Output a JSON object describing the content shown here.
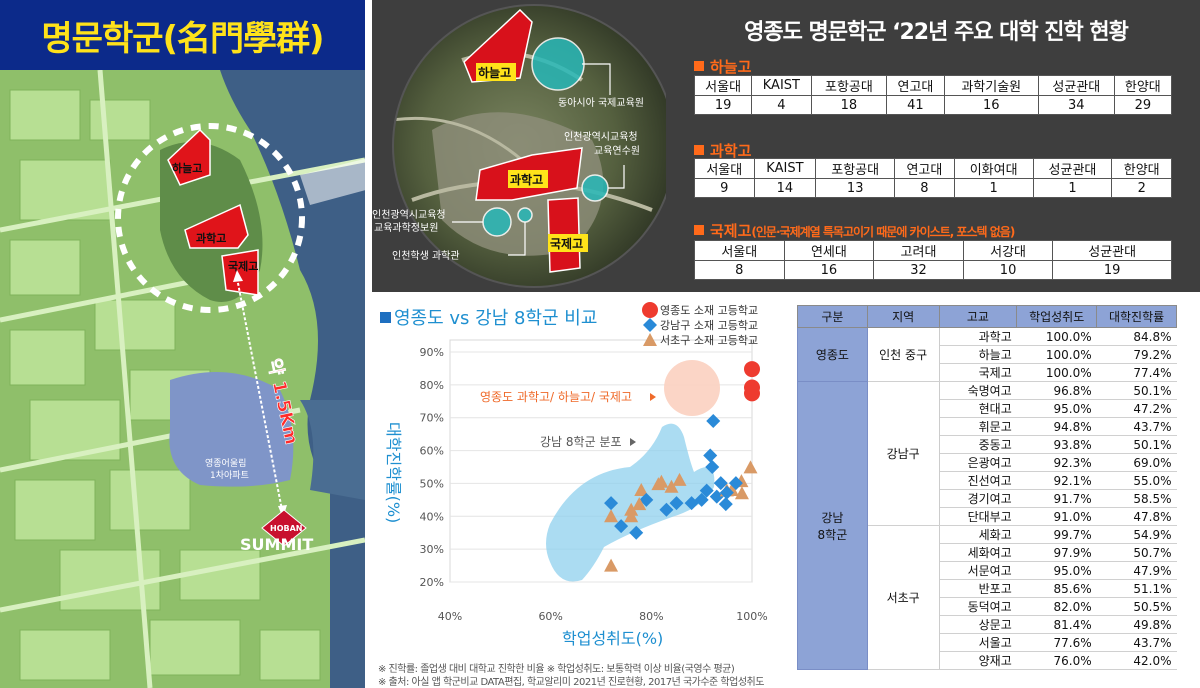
{
  "map": {
    "title": "명문학군(名門學群)",
    "schools": {
      "haneul": "하늘고",
      "gwahak": "과학고",
      "gukje": "국제고"
    },
    "distance_label": "약 1.5Km",
    "apartment_label_1": "영종어울림",
    "apartment_label_2": "1차아파트",
    "brand_small": "HOBAN",
    "brand_big": "SUMMIT"
  },
  "aerial": {
    "haneul": "하늘고",
    "gwahak": "과학고",
    "gukje": "국제고",
    "dongasia": "동아시아 국제교육원",
    "yeonsuwon_1": "인천광역시교육청",
    "yeonsuwon_2": "교육연수원",
    "jeongbowon_1": "인천광역시교육청",
    "jeongbowon_2": "교육과학정보원",
    "gwahakgwan": "인천학생 과학관"
  },
  "stats": {
    "title": "영종도 명문학군 ‘22년 주요 대학 진학 현황",
    "haneul": {
      "label": "하늘고",
      "headers": [
        "서울대",
        "KAIST",
        "포항공대",
        "연고대",
        "과학기술원",
        "성균관대",
        "한양대"
      ],
      "values": [
        "19",
        "4",
        "18",
        "41",
        "16",
        "34",
        "29"
      ]
    },
    "gwahak": {
      "label": "과학고",
      "headers": [
        "서울대",
        "KAIST",
        "포항공대",
        "연고대",
        "이화여대",
        "성균관대",
        "한양대"
      ],
      "values": [
        "9",
        "14",
        "13",
        "8",
        "1",
        "1",
        "2"
      ]
    },
    "gukje": {
      "label": "국제고",
      "note": "(인문·국제계열 특목고이기 때문에 카이스트, 포스텍 없음)",
      "headers": [
        "서울대",
        "연세대",
        "고려대",
        "서강대",
        "성균관대"
      ],
      "values": [
        "8",
        "16",
        "32",
        "10",
        "19"
      ]
    }
  },
  "chart_data": {
    "type": "scatter",
    "title": "영종도 vs 강남 8학군 비교",
    "xlabel": "학업성취도(%)",
    "ylabel": "대학진학률(%)",
    "xlim": [
      40,
      100
    ],
    "ylim": [
      20,
      90
    ],
    "x_ticks": [
      "40%",
      "60%",
      "80%",
      "100%"
    ],
    "y_ticks": [
      "20%",
      "30%",
      "40%",
      "50%",
      "60%",
      "70%",
      "80%",
      "90%"
    ],
    "grid": "horizontal",
    "legend_position": "top-right",
    "annotation_yeongjong": "영종도 과학고/ 하늘고/ 국제고",
    "annotation_gangnam": "강남 8학군 분포",
    "series": [
      {
        "name": "영종도 소재 고등학교",
        "color": "#ee3b2f",
        "marker": "circle",
        "x": [
          100.0,
          100.0,
          100.0
        ],
        "y": [
          84.8,
          79.2,
          77.4
        ]
      },
      {
        "name": "강남구 소재 고등학교",
        "color": "#2a8ad8",
        "marker": "diamond",
        "x": [
          96.8,
          95.0,
          94.8,
          93.8,
          92.3,
          92.1,
          91.7,
          91.0
        ],
        "y": [
          50.1,
          47.2,
          43.7,
          50.1,
          69.0,
          55.0,
          58.5,
          47.8
        ]
      },
      {
        "name": "서초구 소재 고등학교",
        "color": "#d99a66",
        "marker": "triangle",
        "x": [
          99.7,
          97.9,
          95.0,
          85.6,
          82.0,
          81.4,
          77.6,
          76.0
        ],
        "y": [
          54.9,
          50.7,
          47.9,
          51.1,
          50.5,
          49.8,
          43.7,
          42.0
        ]
      }
    ]
  },
  "chart_extra_points": {
    "gangnam": [
      {
        "x": 72,
        "y": 44
      },
      {
        "x": 74,
        "y": 37
      },
      {
        "x": 77,
        "y": 35
      },
      {
        "x": 79,
        "y": 45
      },
      {
        "x": 83,
        "y": 42
      },
      {
        "x": 85,
        "y": 44
      },
      {
        "x": 88,
        "y": 44
      },
      {
        "x": 90,
        "y": 45
      },
      {
        "x": 93,
        "y": 46
      }
    ],
    "seocho": [
      {
        "x": 72,
        "y": 25
      },
      {
        "x": 72,
        "y": 40
      },
      {
        "x": 76,
        "y": 40
      },
      {
        "x": 78,
        "y": 48
      },
      {
        "x": 84,
        "y": 49
      },
      {
        "x": 96,
        "y": 48
      },
      {
        "x": 98,
        "y": 47
      }
    ]
  },
  "footnotes": {
    "line1": "※ 진학률: 졸업생 대비 대학교 진학한 비율  ※ 학업성취도: 보통학력 이상 비율(국영수 평균)",
    "line2": "※ 출처: 아실 앱 학군비교 DATA편집, 학교알리미 2021년 진로현황, 2017년 국가수준 학업성취도"
  },
  "perf_table": {
    "headers": [
      "구분",
      "지역",
      "고교",
      "학업성취도",
      "대학진학률"
    ],
    "yeongjong": {
      "group": "영종도",
      "region": "인천 중구",
      "rows": [
        [
          "과학고",
          "100.0%",
          "84.8%"
        ],
        [
          "하늘고",
          "100.0%",
          "79.2%"
        ],
        [
          "국제고",
          "100.0%",
          "77.4%"
        ]
      ]
    },
    "gangnam": {
      "group_1": "강남",
      "group_2": "8학군",
      "gangnam_gu": {
        "region": "강남구",
        "rows": [
          [
            "숙명여고",
            "96.8%",
            "50.1%"
          ],
          [
            "현대고",
            "95.0%",
            "47.2%"
          ],
          [
            "휘문고",
            "94.8%",
            "43.7%"
          ],
          [
            "중동고",
            "93.8%",
            "50.1%"
          ],
          [
            "은광여고",
            "92.3%",
            "69.0%"
          ],
          [
            "진선여고",
            "92.1%",
            "55.0%"
          ],
          [
            "경기여고",
            "91.7%",
            "58.5%"
          ],
          [
            "단대부고",
            "91.0%",
            "47.8%"
          ]
        ]
      },
      "seocho_gu": {
        "region": "서초구",
        "rows": [
          [
            "세화고",
            "99.7%",
            "54.9%"
          ],
          [
            "세화여고",
            "97.9%",
            "50.7%"
          ],
          [
            "서문여고",
            "95.0%",
            "47.9%"
          ],
          [
            "반포고",
            "85.6%",
            "51.1%"
          ],
          [
            "동덕여고",
            "82.0%",
            "50.5%"
          ],
          [
            "상문고",
            "81.4%",
            "49.8%"
          ],
          [
            "서울고",
            "77.6%",
            "43.7%"
          ],
          [
            "양재고",
            "76.0%",
            "42.0%"
          ]
        ]
      }
    }
  }
}
